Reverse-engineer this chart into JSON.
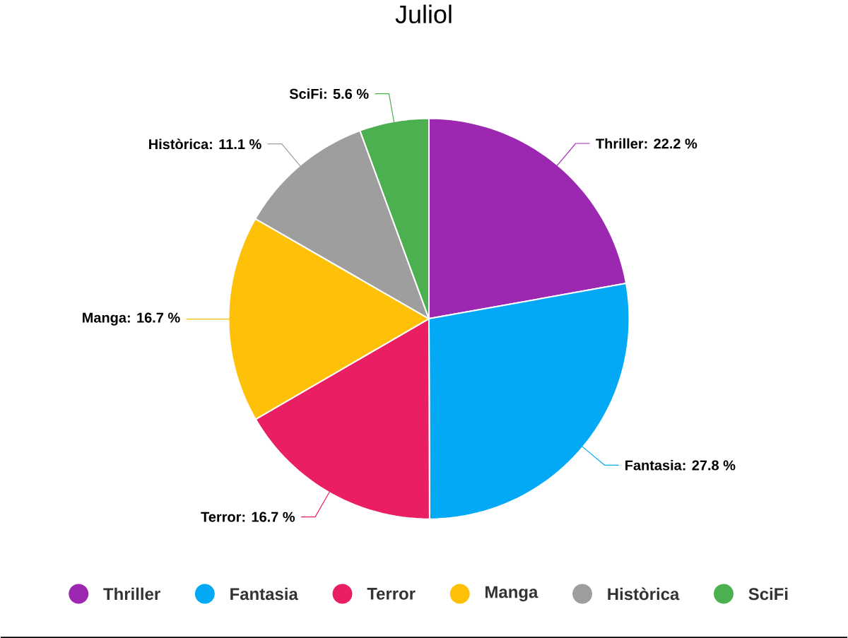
{
  "chart_data": {
    "type": "pie",
    "title": "Juliol",
    "categories": [
      "Thriller",
      "Fantasia",
      "Terror",
      "Manga",
      "Històrica",
      "SciFi"
    ],
    "values": [
      22.2,
      27.8,
      16.7,
      16.7,
      11.1,
      5.6
    ],
    "value_labels": [
      "Thriller: 22.2 %",
      "Fantasia: 27.8 %",
      "Terror: 16.7 %",
      "Manga: 16.7 %",
      "Històrica: 11.1 %",
      "SciFi: 5.6 %"
    ],
    "colors": [
      "#9c27b0",
      "#03a9f4",
      "#e91e63",
      "#ffc107",
      "#9e9e9e",
      "#4caf50"
    ],
    "legend": "bottom"
  }
}
